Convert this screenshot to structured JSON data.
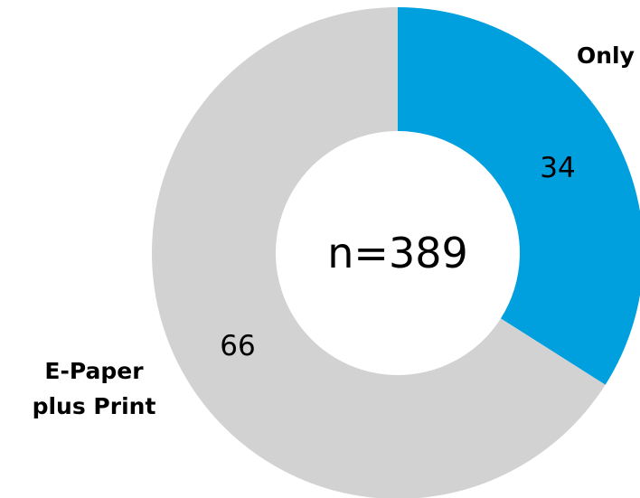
{
  "chart_data": {
    "type": "pie",
    "variant": "donut",
    "center_label": "n=389",
    "slices": [
      {
        "category_lines": [
          "Only"
        ],
        "value": 34,
        "value_label": "34",
        "color": "#009fde"
      },
      {
        "category_lines": [
          "E-Paper",
          "plus Print"
        ],
        "value": 66,
        "value_label": "66",
        "color": "#d2d2d2"
      }
    ]
  }
}
